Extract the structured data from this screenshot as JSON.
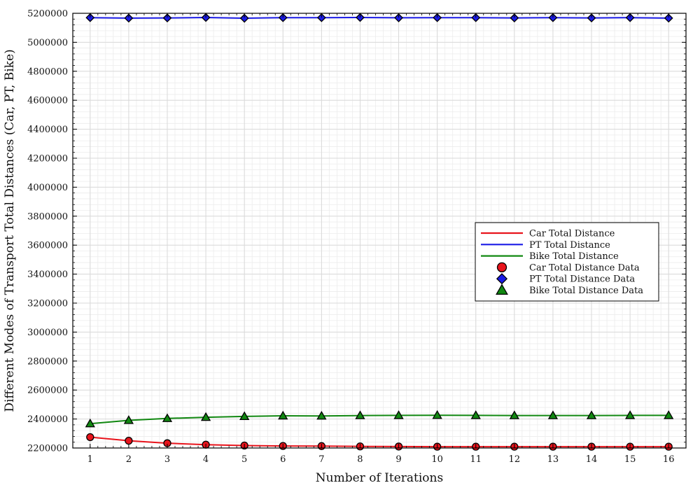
{
  "chart_data": {
    "type": "line",
    "title": "",
    "xlabel": "Number of Iterations",
    "ylabel": "Different Modes of Transport Total Distances (Car, PT, Bike)",
    "x": [
      1,
      2,
      3,
      4,
      5,
      6,
      7,
      8,
      9,
      10,
      11,
      12,
      13,
      14,
      15,
      16
    ],
    "xlim": [
      0.55,
      16.45
    ],
    "ylim": [
      2200000,
      5200000
    ],
    "xticks": [
      "1",
      "2",
      "3",
      "4",
      "5",
      "6",
      "7",
      "8",
      "9",
      "10",
      "11",
      "12",
      "13",
      "14",
      "15",
      "16"
    ],
    "yticks": [
      "2200000",
      "2400000",
      "2600000",
      "2800000",
      "3000000",
      "3200000",
      "3400000",
      "3600000",
      "3800000",
      "4000000",
      "4200000",
      "4400000",
      "4600000",
      "4800000",
      "5000000",
      "5200000"
    ],
    "grid": true,
    "legend_position": "right",
    "series": [
      {
        "name": "Car Total Distance",
        "data_name": "Car Total Distance Data",
        "color": "#e8141c",
        "marker": "circle",
        "values": [
          2275000,
          2250000,
          2233000,
          2223000,
          2217000,
          2214000,
          2213000,
          2211000,
          2210000,
          2209000,
          2209000,
          2209000,
          2209000,
          2209000,
          2209000,
          2209000
        ]
      },
      {
        "name": "PT Total Distance",
        "data_name": "PT Total Distance Data",
        "color": "#1a1ae6",
        "marker": "diamond",
        "values": [
          5170000,
          5167000,
          5168000,
          5171000,
          5166000,
          5170000,
          5170000,
          5171000,
          5169000,
          5170000,
          5170000,
          5168000,
          5170000,
          5168000,
          5170000,
          5167000
        ]
      },
      {
        "name": "Bike Total Distance",
        "data_name": "Bike Total Distance Data",
        "color": "#118811",
        "marker": "triangle",
        "values": [
          2368000,
          2391000,
          2404000,
          2412000,
          2418000,
          2422000,
          2421000,
          2424000,
          2425000,
          2426000,
          2425000,
          2424000,
          2424000,
          2424000,
          2425000,
          2425000
        ]
      }
    ]
  }
}
